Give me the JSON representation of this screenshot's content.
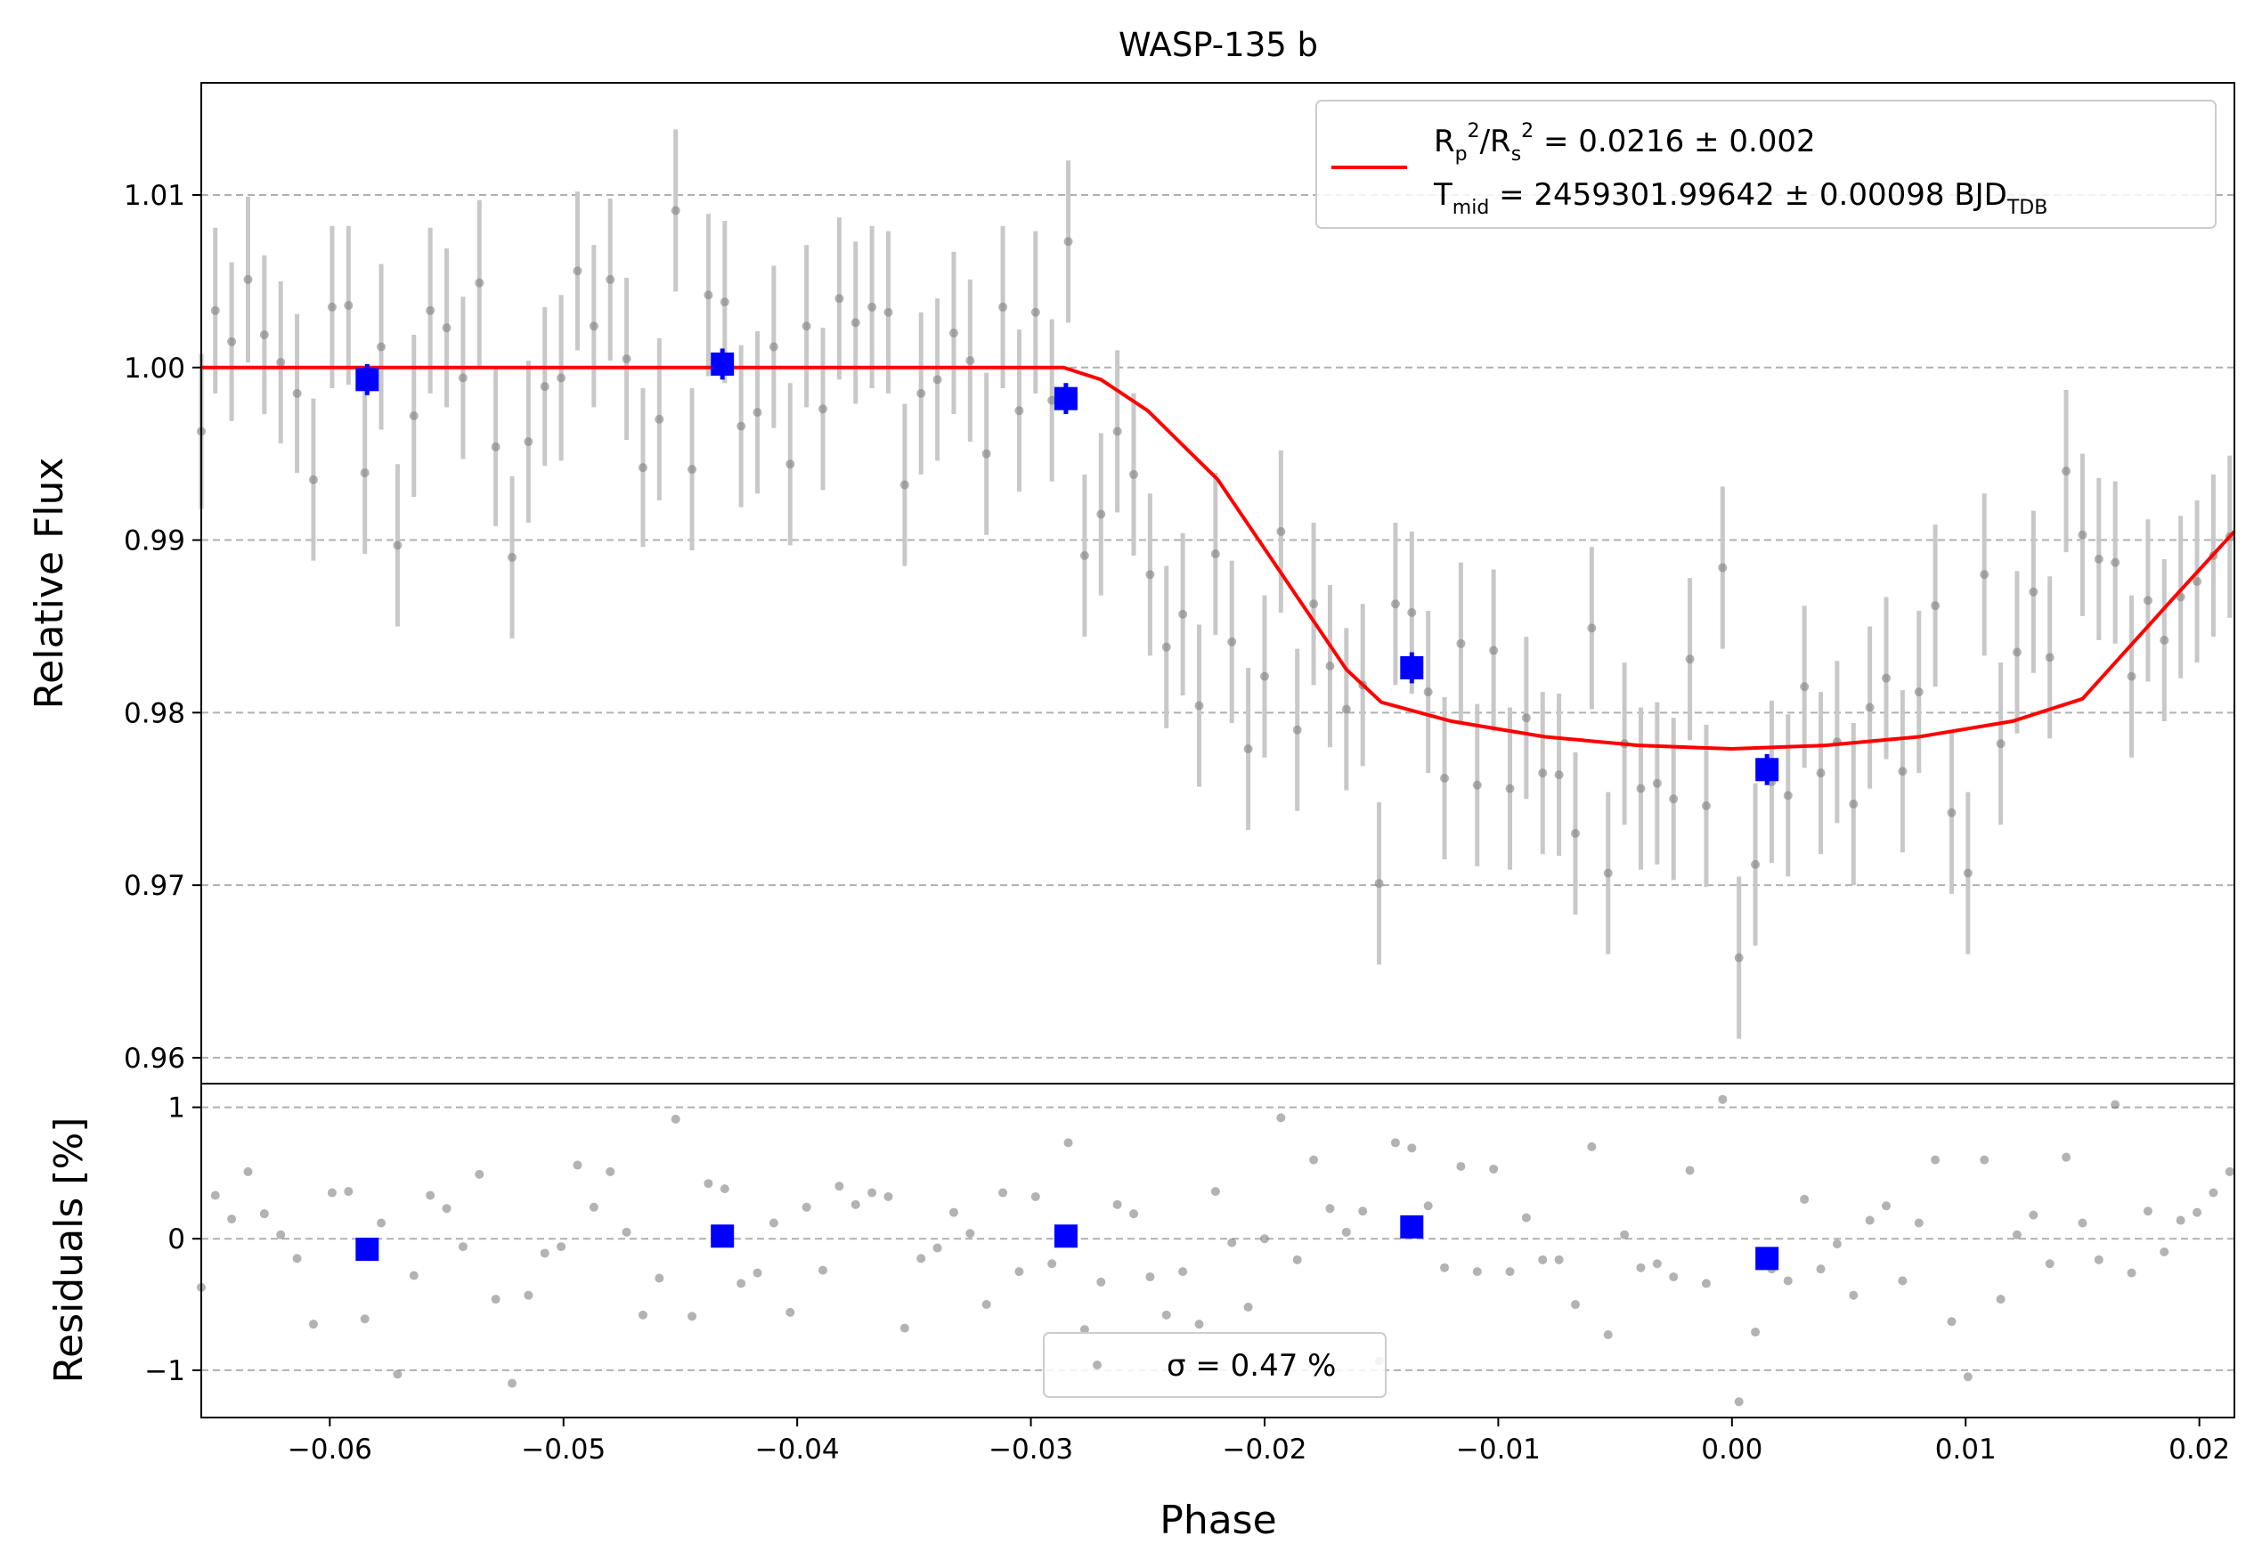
{
  "chart_data": [
    {
      "type": "scatter",
      "panel": "main",
      "title": "WASP-135 b",
      "xlabel": "",
      "ylabel": "Relative Flux",
      "xlim": [
        -0.0655,
        0.0215
      ],
      "ylim": [
        0.9585,
        1.0165
      ],
      "yticks": [
        0.96,
        0.97,
        0.98,
        0.99,
        1.0,
        1.01
      ],
      "ytick_labels": [
        "0.96",
        "0.97",
        "0.98",
        "0.99",
        "1.00",
        "1.01"
      ],
      "grid": "horizontal-dashed",
      "legend_position": "top-right",
      "legend": {
        "model_label_line1": "R_p^2/R_s^2 = 0.0216 ± 0.002",
        "model_label_line2": "T_mid = 2459301.99642 ± 0.00098 BJD_TDB"
      },
      "colors": {
        "data": "#808080",
        "errorbar": "#c8c8c8",
        "binned": "#0000ff",
        "model": "#ff0000"
      },
      "model": {
        "x": [
          -0.0655,
          -0.0286,
          -0.027,
          -0.025,
          -0.022,
          -0.019,
          -0.0165,
          -0.015,
          -0.012,
          -0.008,
          -0.004,
          0.0,
          0.004,
          0.008,
          0.012,
          0.015,
          0.017,
          0.019,
          0.0215
        ],
        "y": [
          1.0,
          1.0,
          0.9993,
          0.9975,
          0.9935,
          0.9875,
          0.9825,
          0.9806,
          0.9795,
          0.9786,
          0.9781,
          0.9779,
          0.9781,
          0.9786,
          0.9795,
          0.9808,
          0.9838,
          0.9868,
          0.9905
        ]
      },
      "binned": {
        "x": [
          -0.0584,
          -0.0432,
          -0.0285,
          -0.0137,
          0.0015
        ],
        "y": [
          0.9993,
          1.0002,
          0.9982,
          0.9826,
          0.9767
        ],
        "err": [
          0.0009,
          0.0009,
          0.0009,
          0.0009,
          0.0009
        ]
      },
      "points": {
        "x": [
          -0.0655,
          -0.0649,
          -0.0642,
          -0.0635,
          -0.0628,
          -0.0621,
          -0.0614,
          -0.0607,
          -0.0599,
          -0.0592,
          -0.0585,
          -0.0578,
          -0.0571,
          -0.0564,
          -0.0557,
          -0.055,
          -0.0543,
          -0.0536,
          -0.0529,
          -0.0522,
          -0.0515,
          -0.0508,
          -0.0501,
          -0.0494,
          -0.0487,
          -0.048,
          -0.0473,
          -0.0466,
          -0.0459,
          -0.0452,
          -0.0445,
          -0.0438,
          -0.0431,
          -0.0424,
          -0.0417,
          -0.041,
          -0.0403,
          -0.0396,
          -0.0389,
          -0.0382,
          -0.0375,
          -0.0368,
          -0.0361,
          -0.0354,
          -0.0347,
          -0.034,
          -0.0333,
          -0.0326,
          -0.0319,
          -0.0312,
          -0.0305,
          -0.0298,
          -0.0291,
          -0.0284,
          -0.0277,
          -0.027,
          -0.0263,
          -0.0256,
          -0.0249,
          -0.0242,
          -0.0235,
          -0.0228,
          -0.0221,
          -0.0214,
          -0.0207,
          -0.02,
          -0.0193,
          -0.0186,
          -0.0179,
          -0.0172,
          -0.0165,
          -0.0158,
          -0.0151,
          -0.0144,
          -0.0137,
          -0.013,
          -0.0123,
          -0.0116,
          -0.0109,
          -0.0102,
          -0.0095,
          -0.0088,
          -0.0081,
          -0.0074,
          -0.0067,
          -0.006,
          -0.0053,
          -0.0046,
          -0.0039,
          -0.0032,
          -0.0025,
          -0.0018,
          -0.0011,
          -0.0004,
          0.0003,
          0.001,
          0.0017,
          0.0024,
          0.0031,
          0.0038,
          0.0045,
          0.0052,
          0.0059,
          0.0066,
          0.0073,
          0.008,
          0.0087,
          0.0094,
          0.0101,
          0.0108,
          0.0115,
          0.0122,
          0.0129,
          0.0136,
          0.0143,
          0.015,
          0.0157,
          0.0164,
          0.0171,
          0.0178,
          0.0185,
          0.0192,
          0.0199,
          0.0206,
          0.0213
        ],
        "y": [
          0.9963,
          1.0033,
          1.0015,
          1.0051,
          1.0019,
          1.0003,
          0.9985,
          0.9935,
          1.0035,
          1.0036,
          0.9939,
          1.0012,
          0.9897,
          0.9972,
          1.0033,
          1.0023,
          0.9994,
          1.0049,
          0.9954,
          0.989,
          0.9957,
          0.9989,
          0.9994,
          1.0056,
          1.0024,
          1.0051,
          1.0005,
          0.9942,
          0.997,
          1.0091,
          0.9941,
          1.0042,
          1.0038,
          0.9966,
          0.9974,
          1.0012,
          0.9944,
          1.0024,
          0.9976,
          1.004,
          1.0026,
          1.0035,
          1.0032,
          0.9932,
          0.9985,
          0.9993,
          1.002,
          1.0004,
          0.995,
          1.0035,
          0.9975,
          1.0032,
          0.9981,
          1.0073,
          0.9891,
          0.9915,
          0.9963,
          0.9938,
          0.988,
          0.9838,
          0.9857,
          0.9804,
          0.9892,
          0.9841,
          0.9779,
          0.9821,
          0.9905,
          0.979,
          0.9863,
          0.9827,
          0.9802,
          0.9816,
          0.9701,
          0.9863,
          0.9858,
          0.9812,
          0.9762,
          0.984,
          0.9758,
          0.9836,
          0.9756,
          0.9797,
          0.9765,
          0.9764,
          0.973,
          0.9849,
          0.9707,
          0.9782,
          0.9756,
          0.9759,
          0.975,
          0.9831,
          0.9746,
          0.9884,
          0.9658,
          0.9712,
          0.976,
          0.9752,
          0.9815,
          0.9765,
          0.9783,
          0.9747,
          0.9803,
          0.982,
          0.9766,
          0.9812,
          0.9862,
          0.9742,
          0.9707,
          0.988,
          0.9782,
          0.9835,
          0.987,
          0.9832,
          0.994,
          0.9903,
          0.9889,
          0.9887,
          0.9821,
          0.9865,
          0.9842,
          0.9867,
          0.9876,
          0.9891,
          0.9902
        ],
        "err": [
          0.0045,
          0.0048,
          0.0046,
          0.0048,
          0.0046,
          0.0047,
          0.0046,
          0.0047,
          0.0047,
          0.0046,
          0.0047,
          0.0048,
          0.0047,
          0.0047,
          0.0048,
          0.0046,
          0.0047,
          0.0048,
          0.0046,
          0.0047,
          0.0047,
          0.0046,
          0.0048,
          0.0046,
          0.0047,
          0.0047,
          0.0047,
          0.0046,
          0.0047,
          0.0047,
          0.0047,
          0.0047,
          0.0047,
          0.0047,
          0.0047,
          0.0047,
          0.0047,
          0.0047,
          0.0047,
          0.0047,
          0.0047,
          0.0047,
          0.0047,
          0.0047,
          0.0047,
          0.0047,
          0.0047,
          0.0047,
          0.0047,
          0.0047,
          0.0047,
          0.0047,
          0.0047,
          0.0047,
          0.0047,
          0.0047,
          0.0047,
          0.0047,
          0.0047,
          0.0047,
          0.0047,
          0.0047,
          0.0047,
          0.0047,
          0.0047,
          0.0047,
          0.0047,
          0.0047,
          0.0047,
          0.0047,
          0.0047,
          0.0047,
          0.0047,
          0.0047,
          0.0047,
          0.0047,
          0.0047,
          0.0047,
          0.0047,
          0.0047,
          0.0047,
          0.0047,
          0.0047,
          0.0047,
          0.0047,
          0.0047,
          0.0047,
          0.0047,
          0.0047,
          0.0047,
          0.0047,
          0.0047,
          0.0047,
          0.0047,
          0.0047,
          0.0047,
          0.0047,
          0.0047,
          0.0047,
          0.0047,
          0.0047,
          0.0047,
          0.0047,
          0.0047,
          0.0047,
          0.0047,
          0.0047,
          0.0047,
          0.0047,
          0.0047,
          0.0047,
          0.0047,
          0.0047,
          0.0047,
          0.0047,
          0.0047,
          0.0047,
          0.0047,
          0.0047,
          0.0047,
          0.0047,
          0.0047,
          0.0047,
          0.0047,
          0.0047
        ]
      }
    },
    {
      "type": "scatter",
      "panel": "residuals",
      "title": "",
      "xlabel": "Phase",
      "ylabel": "Residuals [%]",
      "xlim": [
        -0.0655,
        0.0215
      ],
      "ylim": [
        -1.36,
        1.18
      ],
      "xticks": [
        -0.06,
        -0.05,
        -0.04,
        -0.03,
        -0.02,
        -0.01,
        0.0,
        0.01,
        0.02
      ],
      "xtick_labels": [
        "−0.06",
        "−0.05",
        "−0.04",
        "−0.03",
        "−0.02",
        "−0.01",
        "0.00",
        "0.01",
        "0.02"
      ],
      "yticks": [
        -1,
        0,
        1
      ],
      "ytick_labels": [
        "−1",
        "0",
        "1"
      ],
      "grid": "horizontal-dashed",
      "legend_position": "bottom-center",
      "legend": {
        "label": "σ = 0.47 %"
      },
      "binned": {
        "x": [
          -0.0584,
          -0.0432,
          -0.0285,
          -0.0137,
          0.0015
        ],
        "y": [
          -0.08,
          0.02,
          0.02,
          0.09,
          -0.15
        ]
      },
      "points": {
        "x": [
          -0.0655,
          -0.0649,
          -0.0642,
          -0.0635,
          -0.0628,
          -0.0621,
          -0.0614,
          -0.0607,
          -0.0599,
          -0.0592,
          -0.0585,
          -0.0578,
          -0.0571,
          -0.0564,
          -0.0557,
          -0.055,
          -0.0543,
          -0.0536,
          -0.0529,
          -0.0522,
          -0.0515,
          -0.0508,
          -0.0501,
          -0.0494,
          -0.0487,
          -0.048,
          -0.0473,
          -0.0466,
          -0.0459,
          -0.0452,
          -0.0445,
          -0.0438,
          -0.0431,
          -0.0424,
          -0.0417,
          -0.041,
          -0.0403,
          -0.0396,
          -0.0389,
          -0.0382,
          -0.0375,
          -0.0368,
          -0.0361,
          -0.0354,
          -0.0347,
          -0.034,
          -0.0333,
          -0.0326,
          -0.0319,
          -0.0312,
          -0.0305,
          -0.0298,
          -0.0291,
          -0.0284,
          -0.0277,
          -0.027,
          -0.0263,
          -0.0256,
          -0.0249,
          -0.0242,
          -0.0235,
          -0.0228,
          -0.0221,
          -0.0214,
          -0.0207,
          -0.02,
          -0.0193,
          -0.0186,
          -0.0179,
          -0.0172,
          -0.0165,
          -0.0158,
          -0.0151,
          -0.0144,
          -0.0137,
          -0.013,
          -0.0123,
          -0.0116,
          -0.0109,
          -0.0102,
          -0.0095,
          -0.0088,
          -0.0081,
          -0.0074,
          -0.0067,
          -0.006,
          -0.0053,
          -0.0046,
          -0.0039,
          -0.0032,
          -0.0025,
          -0.0018,
          -0.0011,
          -0.0004,
          0.0003,
          0.001,
          0.0017,
          0.0024,
          0.0031,
          0.0038,
          0.0045,
          0.0052,
          0.0059,
          0.0066,
          0.0073,
          0.008,
          0.0087,
          0.0094,
          0.0101,
          0.0108,
          0.0115,
          0.0122,
          0.0129,
          0.0136,
          0.0143,
          0.015,
          0.0157,
          0.0164,
          0.0171,
          0.0178,
          0.0185,
          0.0192,
          0.0199,
          0.0206,
          0.0213
        ],
        "y": [
          -0.37,
          0.33,
          0.15,
          0.51,
          0.19,
          0.03,
          -0.15,
          -0.65,
          0.35,
          0.36,
          -0.61,
          0.12,
          -1.03,
          -0.28,
          0.33,
          0.23,
          -0.06,
          0.49,
          -0.46,
          -1.1,
          -0.43,
          -0.11,
          -0.06,
          0.56,
          0.24,
          0.51,
          0.05,
          -0.58,
          -0.3,
          0.91,
          -0.59,
          0.42,
          0.38,
          -0.34,
          -0.26,
          0.12,
          -0.56,
          0.24,
          -0.24,
          0.4,
          0.26,
          0.35,
          0.32,
          -0.68,
          -0.15,
          -0.07,
          0.2,
          0.04,
          -0.5,
          0.35,
          -0.25,
          0.32,
          -0.19,
          0.73,
          -0.69,
          -0.33,
          0.26,
          0.19,
          -0.29,
          -0.58,
          -0.25,
          -0.65,
          0.36,
          -0.03,
          -0.52,
          0.0,
          0.92,
          -0.16,
          0.6,
          0.23,
          0.05,
          0.21,
          -0.93,
          0.73,
          0.69,
          0.25,
          -0.22,
          0.55,
          -0.25,
          0.53,
          -0.25,
          0.16,
          -0.16,
          -0.16,
          -0.5,
          0.7,
          -0.73,
          0.03,
          -0.22,
          -0.19,
          -0.29,
          0.52,
          -0.34,
          1.06,
          -1.24,
          -0.71,
          -0.23,
          -0.32,
          0.3,
          -0.23,
          -0.04,
          -0.43,
          0.14,
          0.25,
          -0.32,
          0.12,
          0.6,
          -0.63,
          -1.05,
          0.6,
          -0.46,
          0.03,
          0.18,
          -0.19,
          0.62,
          0.12,
          -0.16,
          1.02,
          -0.26,
          0.21,
          -0.1,
          0.14,
          0.2,
          0.35,
          0.51
        ]
      }
    }
  ]
}
